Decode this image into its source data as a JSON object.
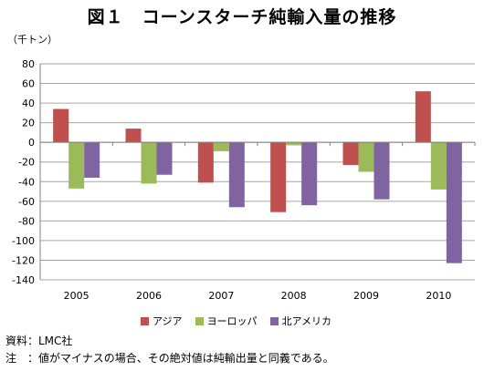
{
  "title": "図１　コーンスターチ純輸入量の推移",
  "unit_label": "（千トン）",
  "source": "資料：LMC社",
  "note": "注　：値がマイナスの場合、その絶対値は純輸出量と同義である。",
  "chart_data": {
    "type": "bar",
    "categories": [
      "2005",
      "2006",
      "2007",
      "2008",
      "2009",
      "2010"
    ],
    "series": [
      {
        "name": "アジア",
        "color": "#c0504d",
        "values": [
          34,
          14,
          -41,
          -71,
          -23,
          52
        ]
      },
      {
        "name": "ヨーロッパ",
        "color": "#9bbb59",
        "values": [
          -47,
          -42,
          -9,
          -3,
          -30,
          -48
        ]
      },
      {
        "name": "北アメリカ",
        "color": "#8064a2",
        "values": [
          -36,
          -33,
          -66,
          -64,
          -58,
          -123
        ]
      }
    ],
    "ylim": [
      -140,
      80
    ],
    "yticks": [
      80,
      60,
      40,
      20,
      0,
      -20,
      -40,
      -60,
      -80,
      -100,
      -120,
      -140
    ],
    "grid": true,
    "legend_position": "bottom"
  }
}
